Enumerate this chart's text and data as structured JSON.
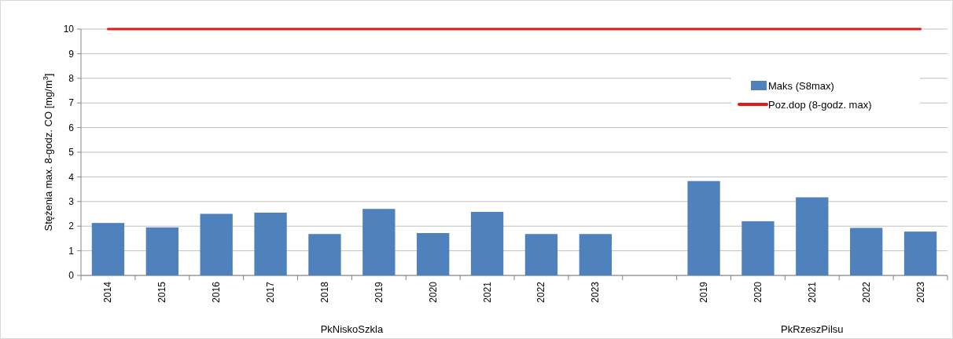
{
  "chart_data": {
    "type": "bar",
    "ylabel": "Stężenia  max. 8-godz. CO [mg/m$^{3}$]",
    "categories": [
      "2014",
      "2015",
      "2016",
      "2017",
      "2018",
      "2019",
      "2020",
      "2021",
      "2022",
      "2023",
      null,
      "2019",
      "2020",
      "2021",
      "2022",
      "2023"
    ],
    "series": [
      {
        "name": "Maks (S8max)",
        "color": "#4f81bd",
        "values": [
          2.13,
          1.95,
          2.5,
          2.55,
          1.68,
          2.7,
          1.72,
          2.58,
          1.68,
          1.68,
          null,
          3.83,
          2.2,
          3.17,
          1.93,
          1.78
        ]
      },
      {
        "name": "Poz.dop (8-godz. max)",
        "type": "line",
        "color": "#e0191b",
        "values": [
          10,
          10,
          10,
          10,
          10,
          10,
          10,
          10,
          10,
          10,
          10,
          10,
          10,
          10,
          10,
          10
        ]
      }
    ],
    "annotations": [
      "PkNiskoSzkla",
      "PkRzeszPilsu"
    ],
    "ylim": [
      0,
      10
    ],
    "yticks": [
      0,
      1,
      2,
      3,
      4,
      5,
      6,
      7,
      8,
      9,
      10
    ],
    "grid": "y",
    "legend": "top right"
  }
}
